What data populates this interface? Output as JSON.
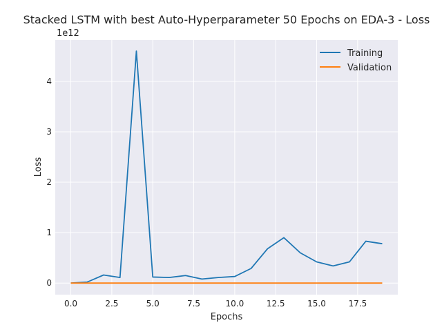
{
  "chart_data": {
    "type": "line",
    "title": "Stacked LSTM with best Auto-Hyperparameter 50 Epochs on EDA-3 - Loss",
    "xlabel": "Epochs",
    "ylabel": "Loss",
    "y_multiplier_label": "1e12",
    "xlim": [
      -0.95,
      19.95
    ],
    "ylim": [
      -0.23,
      4.82
    ],
    "x_ticks": [
      0,
      2.5,
      5,
      7.5,
      10,
      12.5,
      15,
      17.5
    ],
    "x_tick_labels": [
      "0.0",
      "2.5",
      "5.0",
      "7.5",
      "10.0",
      "12.5",
      "15.0",
      "17.5"
    ],
    "y_ticks": [
      0,
      1,
      2,
      3,
      4
    ],
    "y_tick_labels": [
      "0",
      "1",
      "2",
      "3",
      "4"
    ],
    "grid": true,
    "legend_position": "top-right",
    "x": [
      0,
      1,
      2,
      3,
      4,
      5,
      6,
      7,
      8,
      9,
      10,
      11,
      12,
      13,
      14,
      15,
      16,
      17,
      18,
      19
    ],
    "series": [
      {
        "name": "Training",
        "color": "#1f77b4",
        "values": [
          0.0,
          0.02,
          0.16,
          0.11,
          4.6,
          0.12,
          0.11,
          0.15,
          0.08,
          0.11,
          0.13,
          0.29,
          0.68,
          0.9,
          0.6,
          0.42,
          0.34,
          0.42,
          0.83,
          0.78
        ]
      },
      {
        "name": "Validation",
        "color": "#ff7f0e",
        "values": [
          0.0,
          0.0,
          0.0,
          0.0,
          0.0,
          0.0,
          0.0,
          0.0,
          0.0,
          0.0,
          0.0,
          0.0,
          0.0,
          0.0,
          0.0,
          0.0,
          0.0,
          0.0,
          0.0,
          0.0
        ]
      }
    ]
  }
}
